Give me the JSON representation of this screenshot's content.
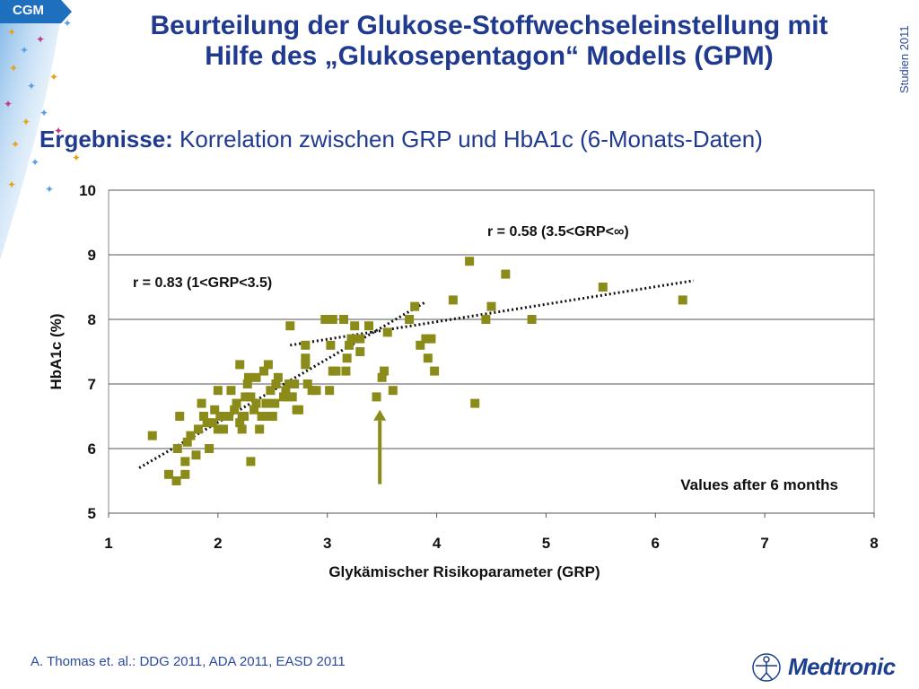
{
  "badge": {
    "label": "CGM"
  },
  "header": {
    "title_line1": "Beurteilung der Glukose-Stoffwechseleinstellung mit",
    "title_line2": "Hilfe des „Glukosepentagon“ Modells (GPM)",
    "side_label": "Studien 2011"
  },
  "subtitle": {
    "bold": "Ergebnisse:",
    "text": " Korrelation zwischen GRP und HbA1c (6-Monats-Daten)"
  },
  "colors": {
    "primary": "#1f3a8f",
    "marker": "#8b8b1a",
    "accent": "#1f6fbf"
  },
  "chart_data": {
    "type": "scatter",
    "xlabel": "Glykämischer Risikoparameter (GRP)",
    "ylabel": "HbA1c (%)",
    "xlim": [
      1,
      8
    ],
    "ylim": [
      5,
      10
    ],
    "xticks": [
      "1",
      "2",
      "3",
      "4",
      "5",
      "6",
      "7",
      "8"
    ],
    "yticks": [
      "5",
      "6",
      "7",
      "8",
      "9",
      "10"
    ],
    "grid": "horizontal",
    "points": [
      [
        1.4,
        6.2
      ],
      [
        1.55,
        5.6
      ],
      [
        1.62,
        5.5
      ],
      [
        1.63,
        6.0
      ],
      [
        1.65,
        6.5
      ],
      [
        1.7,
        5.6
      ],
      [
        1.7,
        5.8
      ],
      [
        1.72,
        6.1
      ],
      [
        1.75,
        6.2
      ],
      [
        1.8,
        5.9
      ],
      [
        1.82,
        6.3
      ],
      [
        1.85,
        6.7
      ],
      [
        1.87,
        6.5
      ],
      [
        1.9,
        6.4
      ],
      [
        1.92,
        6.0
      ],
      [
        1.95,
        6.4
      ],
      [
        1.97,
        6.6
      ],
      [
        2.0,
        6.3
      ],
      [
        2.02,
        6.5
      ],
      [
        2.0,
        6.9
      ],
      [
        2.05,
        6.3
      ],
      [
        2.1,
        6.5
      ],
      [
        2.12,
        6.9
      ],
      [
        2.15,
        6.6
      ],
      [
        2.17,
        6.7
      ],
      [
        2.2,
        6.4
      ],
      [
        2.22,
        6.3
      ],
      [
        2.22,
        6.5
      ],
      [
        2.24,
        6.5
      ],
      [
        2.2,
        7.3
      ],
      [
        2.25,
        6.8
      ],
      [
        2.27,
        7.0
      ],
      [
        2.28,
        7.1
      ],
      [
        2.3,
        6.8
      ],
      [
        2.3,
        5.8
      ],
      [
        2.33,
        6.6
      ],
      [
        2.35,
        6.7
      ],
      [
        2.35,
        7.1
      ],
      [
        2.38,
        6.3
      ],
      [
        2.4,
        6.5
      ],
      [
        2.42,
        7.2
      ],
      [
        2.44,
        6.7
      ],
      [
        2.45,
        6.5
      ],
      [
        2.46,
        7.3
      ],
      [
        2.48,
        6.9
      ],
      [
        2.5,
        6.5
      ],
      [
        2.52,
        6.7
      ],
      [
        2.53,
        7.0
      ],
      [
        2.55,
        7.1
      ],
      [
        2.6,
        6.8
      ],
      [
        2.62,
        6.9
      ],
      [
        2.65,
        7.0
      ],
      [
        2.65,
        6.8
      ],
      [
        2.68,
        6.8
      ],
      [
        2.7,
        7.0
      ],
      [
        2.72,
        6.6
      ],
      [
        2.74,
        6.6
      ],
      [
        2.66,
        7.9
      ],
      [
        2.8,
        7.3
      ],
      [
        2.8,
        7.4
      ],
      [
        2.8,
        7.6
      ],
      [
        2.82,
        7.0
      ],
      [
        2.86,
        6.9
      ],
      [
        2.9,
        6.9
      ],
      [
        2.98,
        8.0
      ],
      [
        3.02,
        6.9
      ],
      [
        3.05,
        7.2
      ],
      [
        3.03,
        7.6
      ],
      [
        3.05,
        8.0
      ],
      [
        3.08,
        7.2
      ],
      [
        3.15,
        8.0
      ],
      [
        3.17,
        7.2
      ],
      [
        3.18,
        7.4
      ],
      [
        3.2,
        7.6
      ],
      [
        3.22,
        7.7
      ],
      [
        3.25,
        7.9
      ],
      [
        3.3,
        7.5
      ],
      [
        3.3,
        7.7
      ],
      [
        3.38,
        7.9
      ],
      [
        3.45,
        6.8
      ],
      [
        3.5,
        7.1
      ],
      [
        3.52,
        7.2
      ],
      [
        3.55,
        7.8
      ],
      [
        3.6,
        6.9
      ],
      [
        3.75,
        8.0
      ],
      [
        3.8,
        8.2
      ],
      [
        3.85,
        7.6
      ],
      [
        3.9,
        7.7
      ],
      [
        3.92,
        7.4
      ],
      [
        3.95,
        7.7
      ],
      [
        3.98,
        7.2
      ],
      [
        4.15,
        8.3
      ],
      [
        4.3,
        8.9
      ],
      [
        4.35,
        6.7
      ],
      [
        4.45,
        8.0
      ],
      [
        4.5,
        8.2
      ],
      [
        4.63,
        8.7
      ],
      [
        4.87,
        8.0
      ],
      [
        5.52,
        8.5
      ],
      [
        6.25,
        8.3
      ]
    ],
    "trendlines": [
      {
        "label": "r = 0.83 (1<GRP<3.5)",
        "from": [
          1.28,
          5.7
        ],
        "to": [
          3.9,
          8.27
        ]
      },
      {
        "label": "r = 0.58 (3.5<GRP<∞)",
        "from": [
          2.66,
          7.6
        ],
        "to": [
          6.35,
          8.6
        ]
      }
    ],
    "annotations": {
      "r_low": "r = 0.83 (1<GRP<3.5)",
      "r_high": "r = 0.58 (3.5<GRP<∞)",
      "note": "Values after 6 months"
    },
    "arrow": {
      "x": 3.48,
      "y_from": 5.45,
      "y_to": 6.6
    }
  },
  "footer": {
    "reference": "A. Thomas et. al.: DDG 2011, ADA  2011, EASD 2011",
    "logo": "Medtronic",
    "logo_icon": "medtronic-figure-icon"
  }
}
